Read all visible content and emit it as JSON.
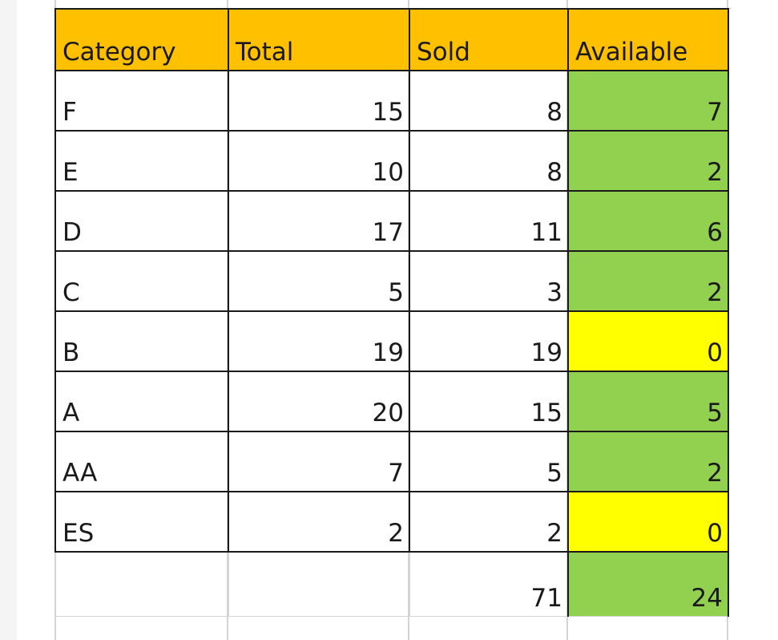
{
  "table": {
    "headers": [
      "Category",
      "Total",
      "Sold",
      "Available"
    ],
    "rows": [
      {
        "category": "F",
        "total": "15",
        "sold": "8",
        "available": "7",
        "status": "ok"
      },
      {
        "category": "E",
        "total": "10",
        "sold": "8",
        "available": "2",
        "status": "ok"
      },
      {
        "category": "D",
        "total": "17",
        "sold": "11",
        "available": "6",
        "status": "ok"
      },
      {
        "category": "C",
        "total": "5",
        "sold": "3",
        "available": "2",
        "status": "ok"
      },
      {
        "category": "B",
        "total": "19",
        "sold": "19",
        "available": "0",
        "status": "zero"
      },
      {
        "category": "A",
        "total": "20",
        "sold": "15",
        "available": "5",
        "status": "ok"
      },
      {
        "category": "AA",
        "total": "7",
        "sold": "5",
        "available": "2",
        "status": "ok"
      },
      {
        "category": "ES",
        "total": "2",
        "sold": "2",
        "available": "0",
        "status": "zero"
      }
    ],
    "totals": {
      "category": "",
      "total": "",
      "sold": "71",
      "available": "24"
    }
  },
  "colors": {
    "header_fill": "#ffc000",
    "available_fill": "#92d050",
    "zero_fill": "#ffff00",
    "gridline": "#d4d4d4"
  }
}
